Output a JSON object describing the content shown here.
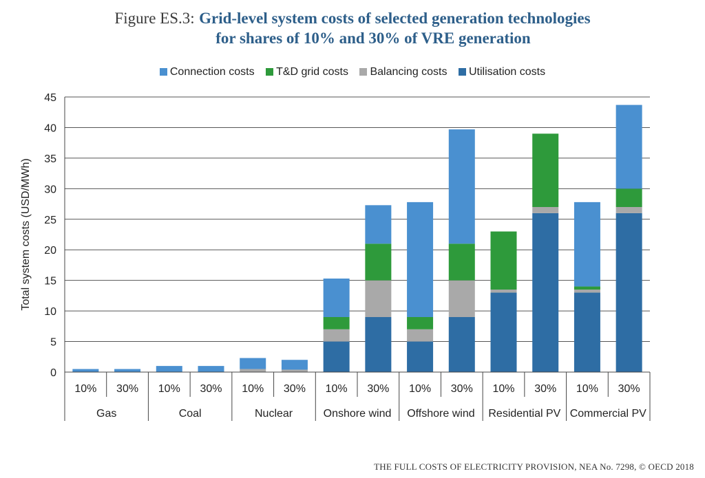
{
  "header": {
    "figure_prefix": "Figure ES.3:",
    "title_line1": "Grid-level system costs of selected generation technologies",
    "title_line2": "for shares of 10% and 30% of VRE generation"
  },
  "footer": {
    "text": "THE FULL COSTS OF ELECTRICITY PROVISION, NEA No. 7298, © OECD 2018"
  },
  "chart_data": {
    "type": "bar",
    "stacked": true,
    "ylabel": "Total system costs (USD/MWh)",
    "xlabel": "",
    "ylim": [
      0,
      45
    ],
    "yticks": [
      0,
      5,
      10,
      15,
      20,
      25,
      30,
      35,
      40,
      45
    ],
    "grid": true,
    "legend_position": "top",
    "groups": [
      "Gas",
      "Coal",
      "Nuclear",
      "Onshore wind",
      "Offshore wind",
      "Residential PV",
      "Commercial PV"
    ],
    "categories": [
      "10%",
      "30%",
      "10%",
      "30%",
      "10%",
      "30%",
      "10%",
      "30%",
      "10%",
      "30%",
      "10%",
      "30%",
      "10%",
      "30%"
    ],
    "series": [
      {
        "name": "Utilisation costs",
        "color": "#2e6da4",
        "values": [
          0,
          0,
          0,
          0,
          0,
          0,
          5,
          9,
          5,
          9,
          13,
          26,
          13,
          26
        ]
      },
      {
        "name": "Balancing costs",
        "color": "#a9a9a9",
        "values": [
          0,
          0,
          0,
          0,
          0.5,
          0.4,
          2,
          6,
          2,
          6,
          0.5,
          1,
          0.5,
          1
        ]
      },
      {
        "name": "T&D grid costs",
        "color": "#2e9a3b",
        "values": [
          0,
          0,
          0,
          0,
          0,
          0,
          2,
          6,
          2,
          6,
          9.5,
          12,
          0.5,
          3
        ]
      },
      {
        "name": "Connection costs",
        "color": "#4a90d0",
        "values": [
          0.5,
          0.5,
          1,
          1,
          1.8,
          1.6,
          6.3,
          6.3,
          18.8,
          18.7,
          0,
          0,
          13.8,
          13.7
        ]
      }
    ],
    "legend_order": [
      "Connection costs",
      "T&D grid costs",
      "Balancing costs",
      "Utilisation costs"
    ]
  }
}
